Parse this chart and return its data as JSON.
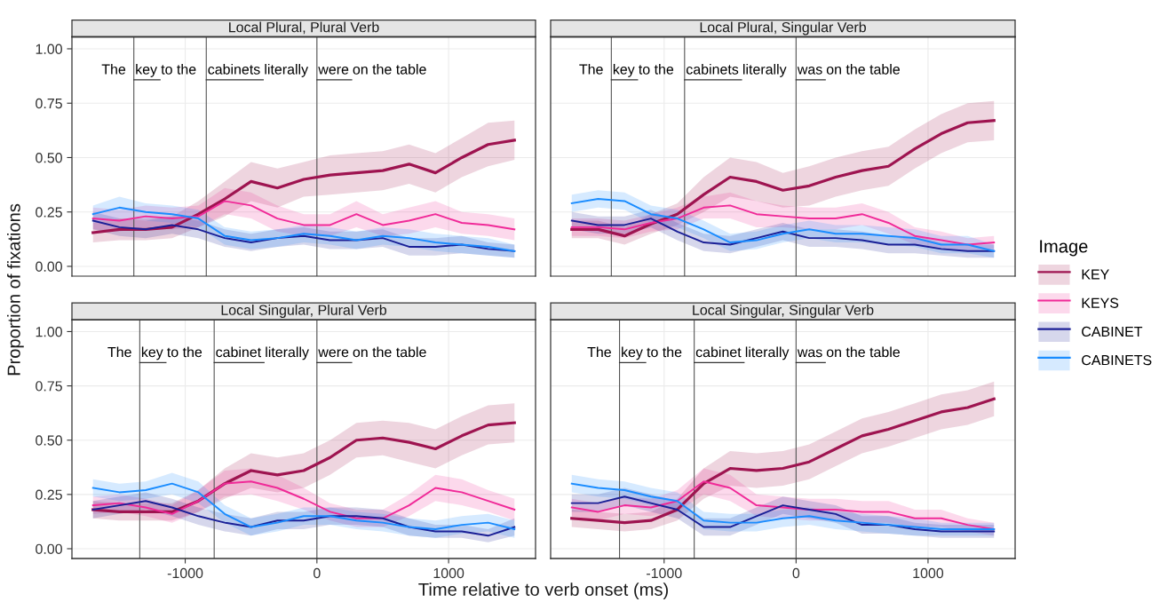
{
  "chart_data": [
    {
      "type": "line",
      "title": "Local Plural, Plural Verb",
      "ylabel": "Proportion of fixations",
      "legend": "right",
      "legend_title": "Image",
      "grid": true,
      "tick_labels": "y",
      "xlim": [
        -1860,
        1660
      ],
      "xticks": [
        -1000,
        0,
        1000
      ],
      "ylim": [
        -0.045,
        1.055
      ],
      "yticks": [
        {
          "value": 0,
          "label": "0.00"
        },
        {
          "value": 0.25,
          "label": "0.25"
        },
        {
          "value": 0.5,
          "label": "0.50"
        },
        {
          "value": 0.75,
          "label": "0.75"
        },
        {
          "value": 1,
          "label": "1.00"
        }
      ],
      "x": [
        -1700,
        -1500,
        -1300,
        -1100,
        -900,
        -700,
        -500,
        -300,
        -100,
        100,
        300,
        500,
        700,
        900,
        1100,
        1300,
        1500
      ],
      "ref_lines": [
        {
          "axis": "x",
          "value": -1390
        },
        {
          "axis": "x",
          "value": -840
        },
        {
          "axis": "x",
          "value": 0
        }
      ],
      "annotations": [
        "The",
        "key",
        "to the",
        "cabinets",
        "literally",
        "were",
        "on the table"
      ],
      "series": [
        {
          "name": "KEY",
          "color": "#9e1450",
          "values": [
            0.155,
            0.17,
            0.17,
            0.18,
            0.24,
            0.31,
            0.39,
            0.36,
            0.4,
            0.42,
            0.43,
            0.44,
            0.47,
            0.43,
            0.5,
            0.56,
            0.58
          ],
          "lower": [
            0.11,
            0.12,
            0.12,
            0.13,
            0.18,
            0.23,
            0.3,
            0.27,
            0.32,
            0.33,
            0.34,
            0.35,
            0.38,
            0.34,
            0.41,
            0.46,
            0.49
          ],
          "upper": [
            0.2,
            0.22,
            0.22,
            0.23,
            0.3,
            0.39,
            0.48,
            0.45,
            0.48,
            0.51,
            0.52,
            0.53,
            0.56,
            0.52,
            0.59,
            0.66,
            0.67
          ]
        },
        {
          "name": "KEYS",
          "color": "#f02a98",
          "values": [
            0.22,
            0.21,
            0.23,
            0.22,
            0.23,
            0.3,
            0.28,
            0.22,
            0.19,
            0.19,
            0.24,
            0.19,
            0.21,
            0.24,
            0.2,
            0.19,
            0.17
          ],
          "lower": [
            0.17,
            0.16,
            0.18,
            0.17,
            0.18,
            0.24,
            0.22,
            0.16,
            0.14,
            0.14,
            0.18,
            0.14,
            0.15,
            0.18,
            0.15,
            0.14,
            0.12
          ],
          "upper": [
            0.27,
            0.26,
            0.28,
            0.27,
            0.28,
            0.36,
            0.34,
            0.28,
            0.24,
            0.24,
            0.3,
            0.24,
            0.27,
            0.3,
            0.25,
            0.24,
            0.22
          ]
        },
        {
          "name": "CABINET",
          "color": "#1a1f96",
          "values": [
            0.21,
            0.18,
            0.17,
            0.19,
            0.17,
            0.13,
            0.11,
            0.13,
            0.14,
            0.12,
            0.12,
            0.13,
            0.09,
            0.09,
            0.1,
            0.08,
            0.07
          ],
          "lower": [
            0.17,
            0.14,
            0.13,
            0.15,
            0.13,
            0.09,
            0.07,
            0.09,
            0.1,
            0.08,
            0.08,
            0.09,
            0.05,
            0.05,
            0.06,
            0.05,
            0.04
          ],
          "upper": [
            0.25,
            0.22,
            0.21,
            0.23,
            0.21,
            0.17,
            0.15,
            0.17,
            0.18,
            0.16,
            0.16,
            0.17,
            0.13,
            0.13,
            0.14,
            0.11,
            0.1
          ]
        },
        {
          "name": "CABINETS",
          "color": "#1a8cff",
          "values": [
            0.24,
            0.27,
            0.25,
            0.24,
            0.22,
            0.14,
            0.12,
            0.13,
            0.15,
            0.14,
            0.12,
            0.14,
            0.13,
            0.11,
            0.1,
            0.09,
            0.07
          ],
          "lower": [
            0.2,
            0.22,
            0.21,
            0.2,
            0.18,
            0.1,
            0.08,
            0.09,
            0.11,
            0.1,
            0.08,
            0.1,
            0.09,
            0.07,
            0.06,
            0.05,
            0.04
          ],
          "upper": [
            0.28,
            0.32,
            0.29,
            0.28,
            0.26,
            0.18,
            0.16,
            0.17,
            0.19,
            0.18,
            0.16,
            0.18,
            0.17,
            0.15,
            0.14,
            0.13,
            0.1
          ]
        }
      ]
    },
    {
      "type": "line",
      "title": "Local Plural, Singular Verb",
      "grid": true,
      "tick_labels": false,
      "xlim": [
        -1860,
        1660
      ],
      "xticks": [
        -1000,
        0,
        1000
      ],
      "ylim": [
        -0.045,
        1.055
      ],
      "yticks": [
        0,
        0.25,
        0.5,
        0.75,
        1
      ],
      "x": [
        -1700,
        -1500,
        -1300,
        -1100,
        -900,
        -700,
        -500,
        -300,
        -100,
        100,
        300,
        500,
        700,
        900,
        1100,
        1300,
        1500
      ],
      "ref_lines": [
        {
          "axis": "x",
          "value": -1400
        },
        {
          "axis": "x",
          "value": -845
        },
        {
          "axis": "x",
          "value": 0
        }
      ],
      "annotations": [
        "The",
        "key",
        "to the",
        "cabinets",
        "literally",
        "was",
        "on the table"
      ],
      "series": [
        {
          "name": "KEY",
          "color": "#9e1450",
          "values": [
            0.17,
            0.17,
            0.14,
            0.195,
            0.24,
            0.33,
            0.41,
            0.39,
            0.35,
            0.37,
            0.41,
            0.44,
            0.46,
            0.54,
            0.61,
            0.66,
            0.67
          ],
          "lower": [
            0.13,
            0.13,
            0.1,
            0.15,
            0.19,
            0.25,
            0.32,
            0.3,
            0.27,
            0.28,
            0.32,
            0.35,
            0.37,
            0.45,
            0.52,
            0.57,
            0.58
          ],
          "upper": [
            0.21,
            0.21,
            0.18,
            0.24,
            0.29,
            0.41,
            0.5,
            0.48,
            0.43,
            0.46,
            0.5,
            0.53,
            0.55,
            0.63,
            0.7,
            0.75,
            0.76
          ]
        },
        {
          "name": "KEYS",
          "color": "#f02a98",
          "values": [
            0.18,
            0.18,
            0.17,
            0.2,
            0.22,
            0.27,
            0.28,
            0.24,
            0.23,
            0.22,
            0.22,
            0.24,
            0.2,
            0.14,
            0.12,
            0.1,
            0.11
          ],
          "lower": [
            0.14,
            0.14,
            0.13,
            0.16,
            0.17,
            0.22,
            0.22,
            0.18,
            0.18,
            0.17,
            0.17,
            0.19,
            0.15,
            0.1,
            0.08,
            0.07,
            0.08
          ],
          "upper": [
            0.22,
            0.22,
            0.21,
            0.24,
            0.27,
            0.32,
            0.34,
            0.3,
            0.28,
            0.27,
            0.27,
            0.29,
            0.25,
            0.18,
            0.16,
            0.13,
            0.14
          ]
        },
        {
          "name": "CABINET",
          "color": "#1a1f96",
          "values": [
            0.21,
            0.19,
            0.19,
            0.22,
            0.16,
            0.11,
            0.1,
            0.13,
            0.16,
            0.13,
            0.13,
            0.12,
            0.1,
            0.1,
            0.08,
            0.07,
            0.07
          ],
          "lower": [
            0.17,
            0.15,
            0.15,
            0.18,
            0.12,
            0.07,
            0.06,
            0.09,
            0.12,
            0.09,
            0.09,
            0.08,
            0.06,
            0.06,
            0.05,
            0.04,
            0.04
          ],
          "upper": [
            0.25,
            0.23,
            0.23,
            0.26,
            0.2,
            0.15,
            0.14,
            0.17,
            0.2,
            0.17,
            0.17,
            0.16,
            0.14,
            0.14,
            0.11,
            0.1,
            0.1
          ]
        },
        {
          "name": "CABINETS",
          "color": "#1a8cff",
          "values": [
            0.29,
            0.31,
            0.3,
            0.24,
            0.22,
            0.17,
            0.11,
            0.12,
            0.15,
            0.17,
            0.15,
            0.15,
            0.14,
            0.13,
            0.1,
            0.1,
            0.07
          ],
          "lower": [
            0.25,
            0.27,
            0.26,
            0.2,
            0.18,
            0.13,
            0.07,
            0.08,
            0.11,
            0.13,
            0.11,
            0.11,
            0.1,
            0.09,
            0.06,
            0.06,
            0.04
          ],
          "upper": [
            0.33,
            0.35,
            0.34,
            0.28,
            0.26,
            0.21,
            0.15,
            0.16,
            0.19,
            0.21,
            0.19,
            0.19,
            0.18,
            0.17,
            0.14,
            0.14,
            0.1
          ]
        }
      ]
    },
    {
      "type": "line",
      "title": "Local Singular, Plural Verb",
      "xlabel": "Time relative to verb onset (ms)",
      "grid": true,
      "xlim": [
        -1860,
        1660
      ],
      "xticks": [
        -1000,
        0,
        1000
      ],
      "ylim": [
        -0.045,
        1.055
      ],
      "yticks": [
        {
          "value": 0,
          "label": "0.00"
        },
        {
          "value": 0.25,
          "label": "0.25"
        },
        {
          "value": 0.5,
          "label": "0.50"
        },
        {
          "value": 0.75,
          "label": "0.75"
        },
        {
          "value": 1,
          "label": "1.00"
        }
      ],
      "x": [
        -1700,
        -1500,
        -1300,
        -1100,
        -900,
        -700,
        -500,
        -300,
        -100,
        100,
        300,
        500,
        700,
        900,
        1100,
        1300,
        1500
      ],
      "ref_lines": [
        {
          "axis": "x",
          "value": -1345
        },
        {
          "axis": "x",
          "value": -780
        },
        {
          "axis": "x",
          "value": 0
        }
      ],
      "annotations": [
        "The",
        "key",
        "to the",
        "cabinet",
        "literally",
        "were",
        "on the table"
      ],
      "series": [
        {
          "name": "KEY",
          "color": "#9e1450",
          "values": [
            0.18,
            0.17,
            0.17,
            0.17,
            0.22,
            0.3,
            0.36,
            0.34,
            0.36,
            0.42,
            0.5,
            0.51,
            0.49,
            0.46,
            0.52,
            0.57,
            0.58
          ],
          "lower": [
            0.14,
            0.13,
            0.13,
            0.13,
            0.17,
            0.23,
            0.28,
            0.26,
            0.28,
            0.34,
            0.42,
            0.43,
            0.4,
            0.37,
            0.43,
            0.48,
            0.49
          ],
          "upper": [
            0.22,
            0.21,
            0.21,
            0.21,
            0.27,
            0.37,
            0.44,
            0.42,
            0.44,
            0.5,
            0.58,
            0.59,
            0.58,
            0.55,
            0.61,
            0.66,
            0.67
          ]
        },
        {
          "name": "KEYS",
          "color": "#f02a98",
          "values": [
            0.2,
            0.21,
            0.19,
            0.16,
            0.22,
            0.3,
            0.31,
            0.28,
            0.23,
            0.17,
            0.14,
            0.14,
            0.2,
            0.28,
            0.26,
            0.22,
            0.18
          ],
          "lower": [
            0.16,
            0.17,
            0.15,
            0.12,
            0.17,
            0.24,
            0.25,
            0.22,
            0.18,
            0.13,
            0.1,
            0.1,
            0.15,
            0.22,
            0.2,
            0.17,
            0.13
          ],
          "upper": [
            0.24,
            0.25,
            0.23,
            0.2,
            0.27,
            0.36,
            0.37,
            0.34,
            0.28,
            0.21,
            0.18,
            0.18,
            0.25,
            0.34,
            0.32,
            0.27,
            0.23
          ]
        },
        {
          "name": "CABINET",
          "color": "#1a1f96",
          "values": [
            0.18,
            0.2,
            0.22,
            0.19,
            0.15,
            0.12,
            0.1,
            0.13,
            0.13,
            0.15,
            0.15,
            0.14,
            0.1,
            0.08,
            0.08,
            0.06,
            0.1
          ],
          "lower": [
            0.14,
            0.16,
            0.18,
            0.15,
            0.11,
            0.08,
            0.06,
            0.09,
            0.09,
            0.11,
            0.11,
            0.1,
            0.06,
            0.05,
            0.05,
            0.03,
            0.06
          ],
          "upper": [
            0.22,
            0.24,
            0.26,
            0.23,
            0.19,
            0.16,
            0.14,
            0.17,
            0.17,
            0.19,
            0.19,
            0.18,
            0.14,
            0.11,
            0.11,
            0.09,
            0.14
          ]
        },
        {
          "name": "CABINETS",
          "color": "#1a8cff",
          "values": [
            0.28,
            0.26,
            0.27,
            0.3,
            0.26,
            0.16,
            0.1,
            0.12,
            0.15,
            0.15,
            0.13,
            0.12,
            0.1,
            0.09,
            0.11,
            0.12,
            0.09
          ],
          "lower": [
            0.24,
            0.22,
            0.23,
            0.25,
            0.21,
            0.12,
            0.06,
            0.08,
            0.11,
            0.11,
            0.09,
            0.08,
            0.06,
            0.05,
            0.07,
            0.08,
            0.05
          ],
          "upper": [
            0.32,
            0.3,
            0.31,
            0.35,
            0.31,
            0.2,
            0.14,
            0.16,
            0.19,
            0.19,
            0.17,
            0.16,
            0.14,
            0.13,
            0.15,
            0.16,
            0.13
          ]
        }
      ]
    },
    {
      "type": "line",
      "title": "Local Singular, Singular Verb",
      "grid": true,
      "tick_labels": "x",
      "xlim": [
        -1860,
        1660
      ],
      "xticks": [
        -1000,
        0,
        1000
      ],
      "ylim": [
        -0.045,
        1.055
      ],
      "yticks": [
        0,
        0.25,
        0.5,
        0.75,
        1
      ],
      "x": [
        -1700,
        -1500,
        -1300,
        -1100,
        -900,
        -700,
        -500,
        -300,
        -100,
        100,
        300,
        500,
        700,
        900,
        1100,
        1300,
        1500
      ],
      "ref_lines": [
        {
          "axis": "x",
          "value": -1338
        },
        {
          "axis": "x",
          "value": -772
        },
        {
          "axis": "x",
          "value": 0
        }
      ],
      "annotations": [
        "The",
        "key",
        "to the",
        "cabinet",
        "literally",
        "was",
        "on the table"
      ],
      "series": [
        {
          "name": "KEY",
          "color": "#9e1450",
          "values": [
            0.14,
            0.13,
            0.12,
            0.13,
            0.18,
            0.3,
            0.37,
            0.36,
            0.37,
            0.4,
            0.46,
            0.52,
            0.55,
            0.59,
            0.63,
            0.65,
            0.69
          ],
          "lower": [
            0.1,
            0.09,
            0.08,
            0.09,
            0.13,
            0.23,
            0.29,
            0.28,
            0.29,
            0.32,
            0.38,
            0.44,
            0.47,
            0.51,
            0.55,
            0.57,
            0.61
          ],
          "upper": [
            0.18,
            0.17,
            0.16,
            0.17,
            0.23,
            0.37,
            0.45,
            0.44,
            0.45,
            0.48,
            0.54,
            0.6,
            0.63,
            0.67,
            0.71,
            0.73,
            0.77
          ]
        },
        {
          "name": "KEYS",
          "color": "#f02a98",
          "values": [
            0.19,
            0.17,
            0.2,
            0.19,
            0.22,
            0.31,
            0.28,
            0.2,
            0.19,
            0.18,
            0.18,
            0.17,
            0.17,
            0.14,
            0.14,
            0.11,
            0.09
          ],
          "lower": [
            0.15,
            0.13,
            0.16,
            0.15,
            0.17,
            0.25,
            0.22,
            0.15,
            0.14,
            0.13,
            0.13,
            0.12,
            0.12,
            0.1,
            0.1,
            0.08,
            0.06
          ],
          "upper": [
            0.23,
            0.21,
            0.24,
            0.23,
            0.27,
            0.37,
            0.34,
            0.25,
            0.24,
            0.23,
            0.23,
            0.22,
            0.22,
            0.18,
            0.18,
            0.14,
            0.12
          ]
        },
        {
          "name": "CABINET",
          "color": "#1a1f96",
          "values": [
            0.21,
            0.21,
            0.24,
            0.21,
            0.18,
            0.1,
            0.1,
            0.15,
            0.2,
            0.18,
            0.16,
            0.11,
            0.11,
            0.09,
            0.08,
            0.08,
            0.08
          ],
          "lower": [
            0.17,
            0.17,
            0.2,
            0.17,
            0.14,
            0.06,
            0.06,
            0.11,
            0.16,
            0.14,
            0.12,
            0.07,
            0.07,
            0.06,
            0.05,
            0.05,
            0.05
          ],
          "upper": [
            0.25,
            0.25,
            0.28,
            0.25,
            0.22,
            0.14,
            0.14,
            0.19,
            0.24,
            0.22,
            0.2,
            0.15,
            0.15,
            0.12,
            0.11,
            0.11,
            0.11
          ]
        },
        {
          "name": "CABINETS",
          "color": "#1a8cff",
          "values": [
            0.3,
            0.28,
            0.27,
            0.24,
            0.22,
            0.13,
            0.12,
            0.12,
            0.14,
            0.15,
            0.13,
            0.12,
            0.11,
            0.1,
            0.09,
            0.09,
            0.09
          ],
          "lower": [
            0.26,
            0.24,
            0.23,
            0.2,
            0.18,
            0.09,
            0.08,
            0.08,
            0.1,
            0.11,
            0.09,
            0.08,
            0.07,
            0.06,
            0.06,
            0.06,
            0.06
          ],
          "upper": [
            0.34,
            0.32,
            0.31,
            0.28,
            0.26,
            0.17,
            0.16,
            0.16,
            0.18,
            0.19,
            0.17,
            0.16,
            0.15,
            0.14,
            0.12,
            0.12,
            0.12
          ]
        }
      ]
    }
  ]
}
